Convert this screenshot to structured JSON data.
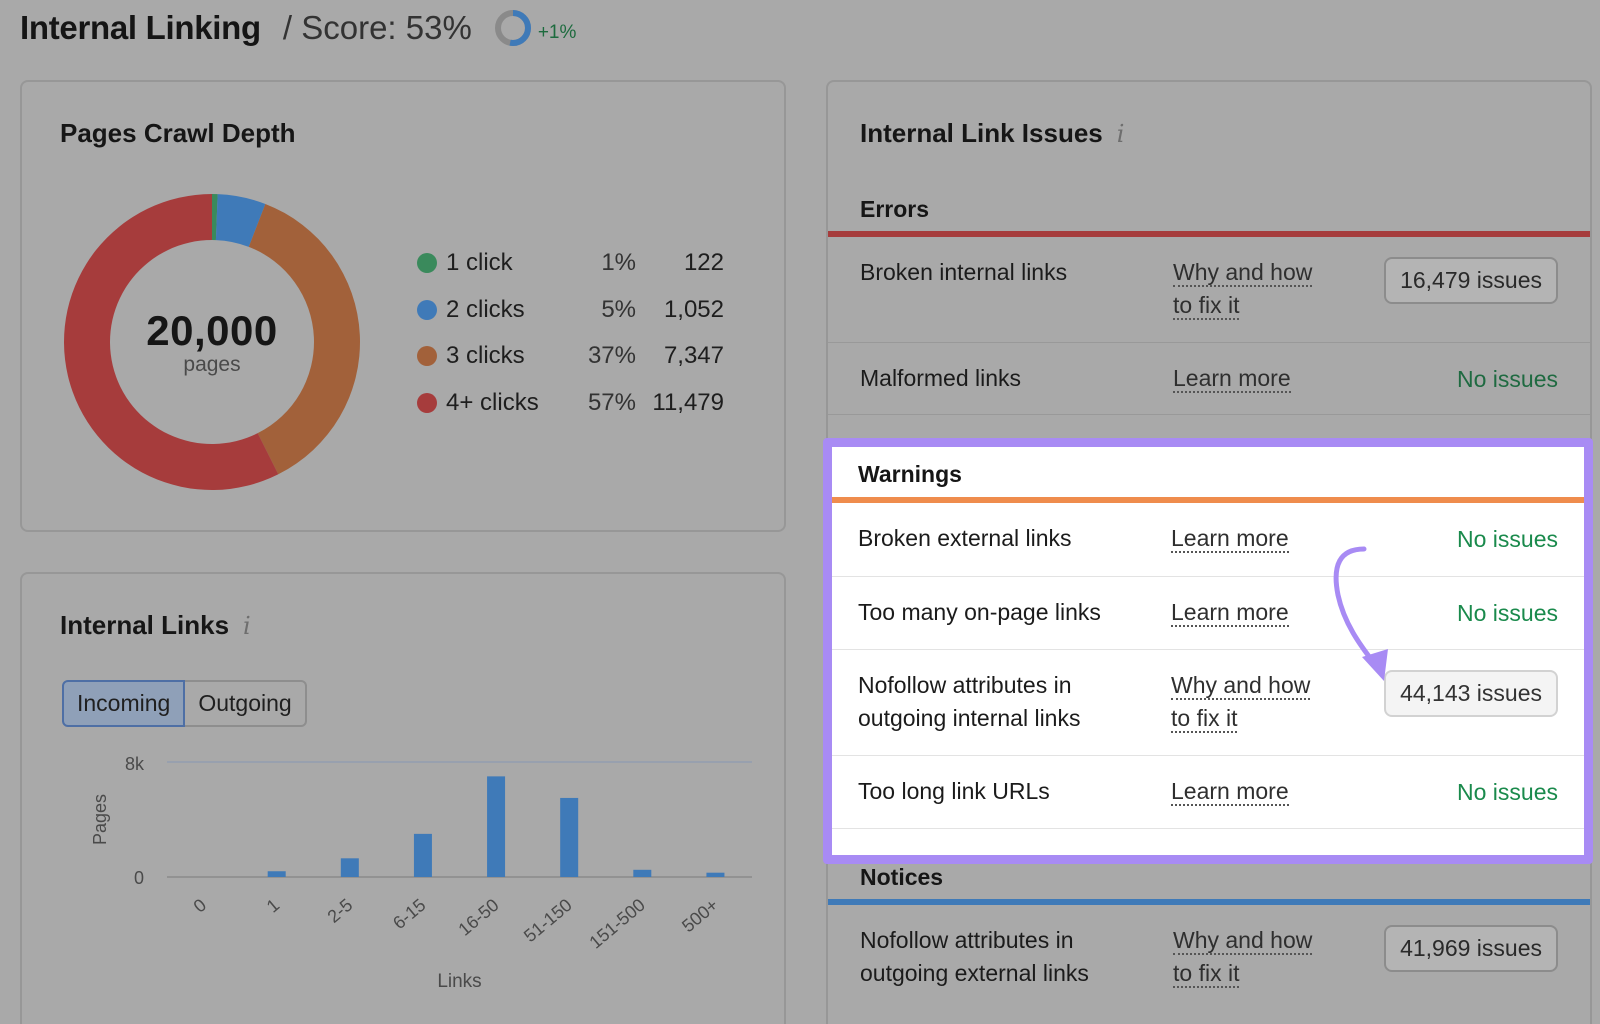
{
  "header": {
    "title": "Internal Linking",
    "score_label": "/ Score: 53%",
    "score_value": 53,
    "delta": "+1%",
    "ring_color": "#3f7ab8"
  },
  "crawl_depth": {
    "title": "Pages Crawl Depth",
    "total": "20,000",
    "unit": "pages",
    "items": [
      {
        "label": "1 click",
        "pct": "1%",
        "count": "122",
        "value": 122,
        "color": "#3a8a5c"
      },
      {
        "label": "2 clicks",
        "pct": "5%",
        "count": "1,052",
        "value": 1052,
        "color": "#3f7ab8"
      },
      {
        "label": "3 clicks",
        "pct": "37%",
        "count": "7,347",
        "value": 7347,
        "color": "#a2613a"
      },
      {
        "label": "4+ clicks",
        "pct": "57%",
        "count": "11,479",
        "value": 11479,
        "color": "#a63c3c"
      }
    ]
  },
  "internal_links": {
    "title": "Internal Links",
    "info": "i",
    "tabs": [
      {
        "label": "Incoming",
        "active": true
      },
      {
        "label": "Outgoing",
        "active": false
      }
    ]
  },
  "chart_data": {
    "type": "bar",
    "categories": [
      "0",
      "1",
      "2-5",
      "6-15",
      "16-50",
      "51-150",
      "151-500",
      "500+"
    ],
    "values": [
      0,
      400,
      1300,
      3000,
      7000,
      5500,
      500,
      300
    ],
    "ylabel": "Pages",
    "xlabel": "Links",
    "ylim": [
      0,
      8000
    ],
    "yticks": [
      "0",
      "8k"
    ],
    "color": "#3f7ab8"
  },
  "issues": {
    "title": "Internal Link Issues",
    "info": "i",
    "errors": {
      "title": "Errors",
      "color": "#a63c3c",
      "rows": [
        {
          "name_lines": [
            "Broken internal links"
          ],
          "link_lines": [
            "Why and how",
            "to fix it"
          ],
          "status": "16,479 issues",
          "type": "badge"
        },
        {
          "name_lines": [
            "Malformed links"
          ],
          "link_lines": [
            "Learn more"
          ],
          "status": "No issues",
          "type": "ok"
        }
      ]
    },
    "warnings": {
      "title": "Warnings",
      "color": "#ef8c4d",
      "highlight_color": "#a88bf4",
      "rows": [
        {
          "name_lines": [
            "Broken external links"
          ],
          "link_lines": [
            "Learn more"
          ],
          "status": "No issues",
          "type": "ok"
        },
        {
          "name_lines": [
            "Too many on-page links"
          ],
          "link_lines": [
            "Learn more"
          ],
          "status": "No issues",
          "type": "ok"
        },
        {
          "name_lines": [
            "Nofollow attributes in",
            "outgoing internal links"
          ],
          "link_lines": [
            "Why and how",
            "to fix it"
          ],
          "status": "44,143 issues",
          "type": "badge"
        },
        {
          "name_lines": [
            "Too long link URLs"
          ],
          "link_lines": [
            "Learn more"
          ],
          "status": "No issues",
          "type": "ok"
        }
      ]
    },
    "notices": {
      "title": "Notices",
      "color": "#3f7ab8",
      "rows": [
        {
          "name_lines": [
            "Nofollow attributes in",
            "outgoing external links"
          ],
          "link_lines": [
            "Why and how",
            "to fix it"
          ],
          "status": "41,969 issues",
          "type": "badge"
        }
      ]
    }
  }
}
